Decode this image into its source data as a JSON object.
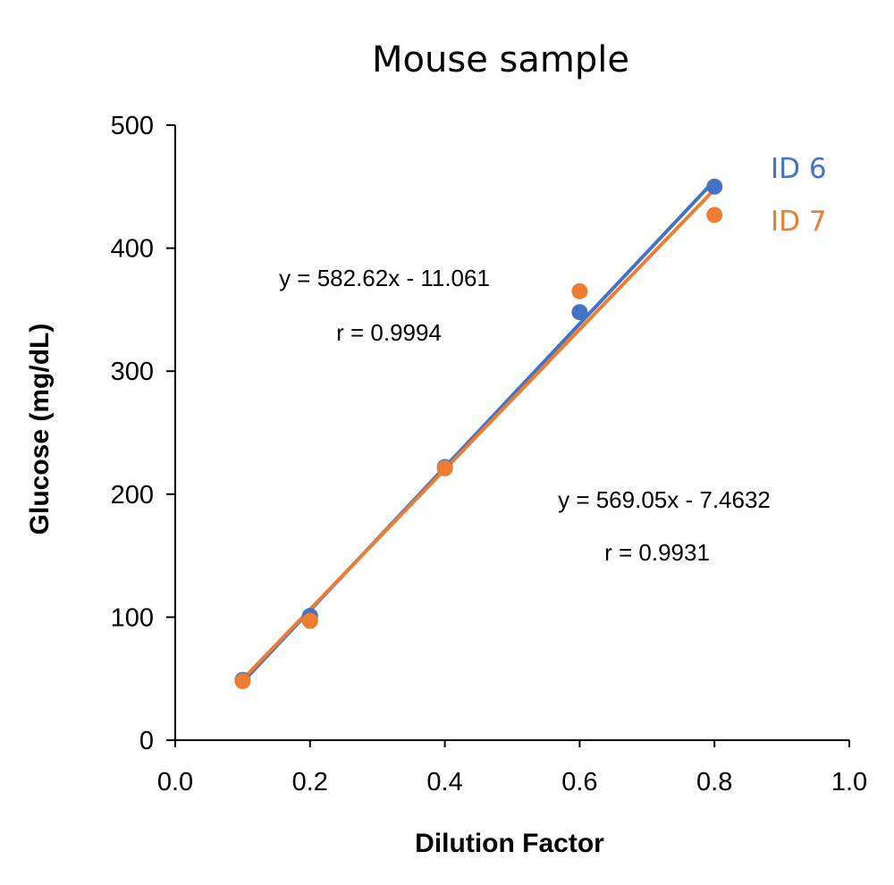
{
  "chart_data": {
    "type": "scatter",
    "title": "Mouse sample",
    "xlabel": "Dilution Factor",
    "ylabel": "Glucose (mg/dL)",
    "xlim": [
      0,
      1
    ],
    "ylim": [
      0,
      500
    ],
    "xticks": [
      0,
      0.2,
      0.4,
      0.6,
      0.8,
      1.0
    ],
    "xtick_labels": [
      "0.0",
      "0.2",
      "0.4",
      "0.6",
      "0.8",
      "1.0"
    ],
    "yticks": [
      0,
      100,
      200,
      300,
      400,
      500
    ],
    "ytick_labels": [
      "0",
      "100",
      "200",
      "300",
      "400",
      "500"
    ],
    "grid": false,
    "legend_position": "top-right",
    "series": [
      {
        "name": "ID 6",
        "color": "#4472C4",
        "x": [
          0.1,
          0.2,
          0.4,
          0.6,
          0.8
        ],
        "y": [
          49,
          101,
          222,
          348,
          450
        ],
        "trendline": {
          "slope": 582.62,
          "intercept": -11.061
        },
        "equation": "y = 582.62x - 11.061",
        "r_label": "r = 0.9994"
      },
      {
        "name": "ID 7",
        "color": "#ED7D31",
        "x": [
          0.1,
          0.2,
          0.4,
          0.6,
          0.8
        ],
        "y": [
          48,
          97,
          221,
          365,
          427
        ],
        "trendline": {
          "slope": 569.05,
          "intercept": -7.4632
        },
        "equation": "y = 569.05x - 7.4632",
        "r_label": "r = 0.9931"
      }
    ]
  }
}
